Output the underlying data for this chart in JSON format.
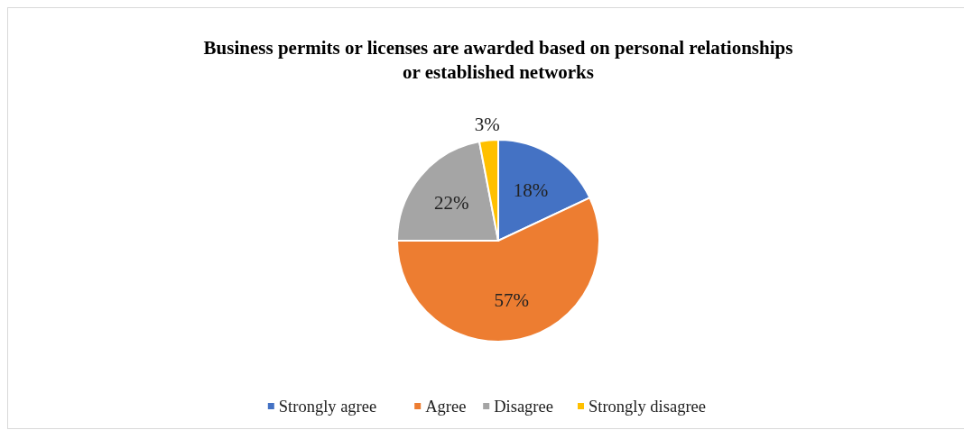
{
  "chart_data": {
    "type": "pie",
    "title": "Business permits or licenses are awarded based on personal relationships\nor established networks",
    "categories": [
      "Strongly agree",
      "Agree",
      "Disagree",
      "Strongly disagree"
    ],
    "values": [
      18,
      57,
      22,
      3
    ],
    "colors": [
      "#4472c4",
      "#ed7d31",
      "#a5a5a5",
      "#ffc000"
    ],
    "value_labels": [
      "18%",
      "57%",
      "22%",
      "3%"
    ],
    "legend": "bottom"
  }
}
